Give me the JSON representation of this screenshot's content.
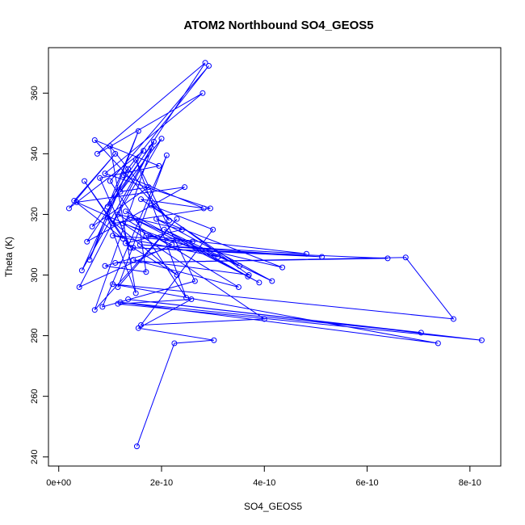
{
  "chart_data": {
    "type": "line",
    "title": "ATOM2 Northbound SO4_GEOS5",
    "xlabel": "SO4_GEOS5",
    "ylabel": "Theta (K)",
    "xlim": [
      -2e-11,
      8.6e-10
    ],
    "ylim": [
      237,
      375
    ],
    "xticks": [
      0,
      2e-10,
      4e-10,
      6e-10,
      8e-10
    ],
    "xtick_labels": [
      "0e+00",
      "2e-10",
      "4e-10",
      "6e-10",
      "8e-10"
    ],
    "yticks": [
      240,
      260,
      280,
      300,
      320,
      340,
      360
    ],
    "ytick_labels": [
      "240",
      "260",
      "280",
      "300",
      "320",
      "340",
      "360"
    ],
    "grid": false,
    "legend": "none",
    "line_color": "#0000ff",
    "marker": "open-circle",
    "series": [
      {
        "x": [
          1.52e-10,
          2.25e-10,
          3.02e-10,
          1.55e-10,
          2.58e-10,
          1.15e-10,
          8.23e-10,
          1.35e-10,
          7.05e-10,
          1.2e-10,
          7.38e-10,
          1.05e-10,
          7.68e-10,
          6.75e-10,
          1.1e-10,
          6.4e-10,
          1.45e-10,
          5.12e-10,
          1.58e-10,
          4.82e-10,
          1.7e-10,
          4.35e-10,
          1.9e-10,
          4.15e-10,
          2.05e-10,
          3.9e-10,
          1.3e-10,
          3.68e-10,
          1.4e-10,
          3.52e-10,
          1.6e-10,
          2.82e-10,
          1.25e-10,
          2.92e-10,
          1e-10,
          2.48e-10,
          1.5e-10,
          2.65e-10,
          8.5e-11,
          2.1e-10,
          1.15e-10,
          2.3e-10,
          7e-11,
          1.85e-10,
          9.5e-11,
          1.55e-10,
          6e-11,
          1.35e-10,
          4.5e-11,
          1.8e-10,
          4e-11,
          2.2e-10,
          3.5e-11,
          2.45e-10,
          5.5e-11,
          2.85e-10,
          7.5e-11,
          2.8e-10,
          9e-11,
          2.95e-10,
          1.05e-10,
          2e-10,
          1.2e-10,
          1.75e-10,
          6.5e-11,
          1.65e-10,
          2e-11,
          1.1e-10,
          3e-11,
          1.25e-10,
          5e-11,
          1.4e-10,
          8e-11,
          1.95e-10,
          7e-11,
          2.15e-10,
          1e-10,
          1.5e-10,
          9.5e-11,
          2.3e-10,
          1.3e-10,
          2.4e-10,
          1.15e-10,
          3.5e-10,
          1.45e-10,
          3.7e-10,
          1.8e-10,
          3e-10,
          1.6e-10,
          4e-10,
          1.25e-10,
          3.1e-10,
          1.05e-10,
          2.6e-10,
          9e-11,
          1.7e-10,
          1.55e-10
        ],
        "y": [
          243.5,
          277.5,
          278.5,
          282.5,
          292.0,
          290.5,
          278.5,
          292.0,
          281.0,
          291.0,
          277.5,
          297.0,
          285.5,
          305.8,
          304.0,
          305.5,
          309.0,
          306.0,
          310.0,
          307.0,
          313.0,
          302.5,
          318.5,
          298.0,
          315.0,
          297.5,
          321.0,
          299.5,
          319.0,
          303.0,
          325.0,
          322.0,
          333.0,
          369.0,
          331.0,
          292.5,
          338.0,
          298.0,
          289.5,
          339.5,
          296.0,
          318.5,
          288.5,
          344.0,
          322.5,
          347.5,
          305.0,
          335.0,
          301.5,
          342.0,
          296.0,
          310.0,
          324.0,
          329.0,
          311.0,
          370.0,
          340.0,
          360.0,
          333.5,
          322.0,
          317.0,
          345.0,
          327.5,
          329.0,
          316.0,
          341.0,
          322.0,
          340.0,
          324.5,
          312.0,
          331.0,
          309.0,
          332.0,
          336.0,
          344.5,
          318.0,
          342.5,
          294.0,
          319.0,
          300.0,
          310.5,
          315.0,
          320.0,
          296.0,
          305.0,
          300.0,
          323.0,
          315.0,
          283.5,
          285.5,
          317.0,
          306.0,
          313.0,
          311.0,
          303.0,
          301.0,
          318.0
        ]
      }
    ]
  }
}
